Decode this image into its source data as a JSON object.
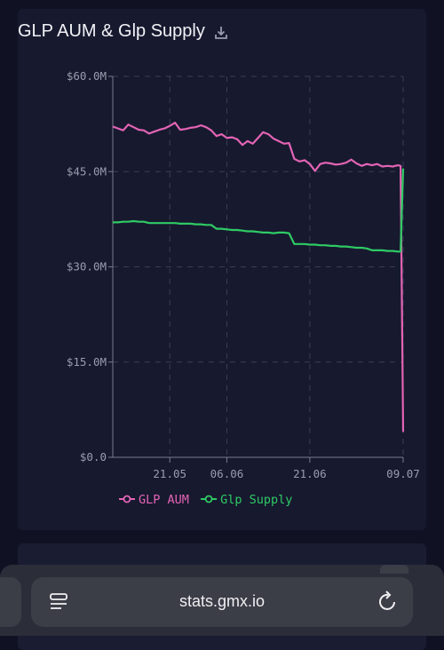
{
  "browser": {
    "url": "stats.gmx.io",
    "reader_icon": "reader-mode-icon",
    "reload_icon": "reload-icon"
  },
  "card": {
    "title": "GLP AUM & Glp Supply",
    "download_icon": "download-icon"
  },
  "colors": {
    "aum": "#e364b4",
    "supply": "#2ecb64",
    "card": "#17192f",
    "page": "#101223"
  },
  "chart_data": {
    "type": "line",
    "title": "GLP AUM & Glp Supply",
    "ylim": [
      0,
      60
    ],
    "yticks": [
      "$0.0",
      "$15.0M",
      "$30.0M",
      "$45.0M",
      "$60.0M"
    ],
    "ytick_values": [
      0,
      15,
      30,
      45,
      60
    ],
    "xlim": [
      0,
      56
    ],
    "xticks": [
      "21.05",
      "06.06",
      "21.06",
      "09.07"
    ],
    "xtick_values": [
      11,
      22,
      38,
      56
    ],
    "grid": true,
    "legend_position": "bottom",
    "series": [
      {
        "name": "GLP AUM",
        "color": "#e364b4",
        "x": [
          0,
          1,
          2,
          3,
          4,
          5,
          6,
          7,
          8,
          9,
          10,
          11,
          12,
          13,
          14,
          15,
          16,
          17,
          18,
          19,
          20,
          21,
          22,
          23,
          24,
          25,
          26,
          27,
          28,
          29,
          30,
          31,
          32,
          33,
          34,
          35,
          36,
          37,
          38,
          39,
          40,
          41,
          42,
          43,
          44,
          45,
          46,
          47,
          48,
          49,
          50,
          51,
          52,
          53,
          54,
          55,
          55.5,
          56
        ],
        "values": [
          52.1,
          51.8,
          51.5,
          52.4,
          52.0,
          51.6,
          51.5,
          51.0,
          51.3,
          51.6,
          51.8,
          52.2,
          52.7,
          51.6,
          51.7,
          51.9,
          52.0,
          52.3,
          52.0,
          51.5,
          50.6,
          50.9,
          50.3,
          50.4,
          50.1,
          49.2,
          49.8,
          49.4,
          50.3,
          51.2,
          50.9,
          50.2,
          49.8,
          49.4,
          49.5,
          47.0,
          46.6,
          46.8,
          46.2,
          45.1,
          46.2,
          46.4,
          46.3,
          46.1,
          46.2,
          46.4,
          46.9,
          46.3,
          45.9,
          46.2,
          46.0,
          46.2,
          45.8,
          45.9,
          45.8,
          46.0,
          45.9,
          4.0
        ]
      },
      {
        "name": "Glp Supply",
        "color": "#2ecb64",
        "x": [
          0,
          1,
          2,
          3,
          4,
          5,
          6,
          7,
          8,
          9,
          10,
          11,
          12,
          13,
          14,
          15,
          16,
          17,
          18,
          19,
          20,
          21,
          22,
          23,
          24,
          25,
          26,
          27,
          28,
          29,
          30,
          31,
          32,
          33,
          34,
          35,
          36,
          37,
          38,
          39,
          40,
          41,
          42,
          43,
          44,
          45,
          46,
          47,
          48,
          49,
          50,
          51,
          52,
          53,
          54,
          55,
          55.5,
          56
        ],
        "values": [
          37.0,
          37.0,
          37.1,
          37.1,
          37.2,
          37.1,
          37.1,
          36.9,
          36.9,
          36.9,
          36.9,
          36.9,
          36.9,
          36.8,
          36.8,
          36.8,
          36.7,
          36.7,
          36.6,
          36.6,
          36.0,
          36.0,
          35.9,
          35.8,
          35.8,
          35.7,
          35.6,
          35.6,
          35.5,
          35.4,
          35.4,
          35.3,
          35.4,
          35.4,
          35.3,
          33.6,
          33.6,
          33.6,
          33.5,
          33.5,
          33.4,
          33.4,
          33.3,
          33.3,
          33.2,
          33.2,
          33.1,
          33.0,
          33.0,
          32.9,
          32.6,
          32.6,
          32.6,
          32.5,
          32.5,
          32.4,
          32.4,
          45.5
        ]
      }
    ]
  }
}
